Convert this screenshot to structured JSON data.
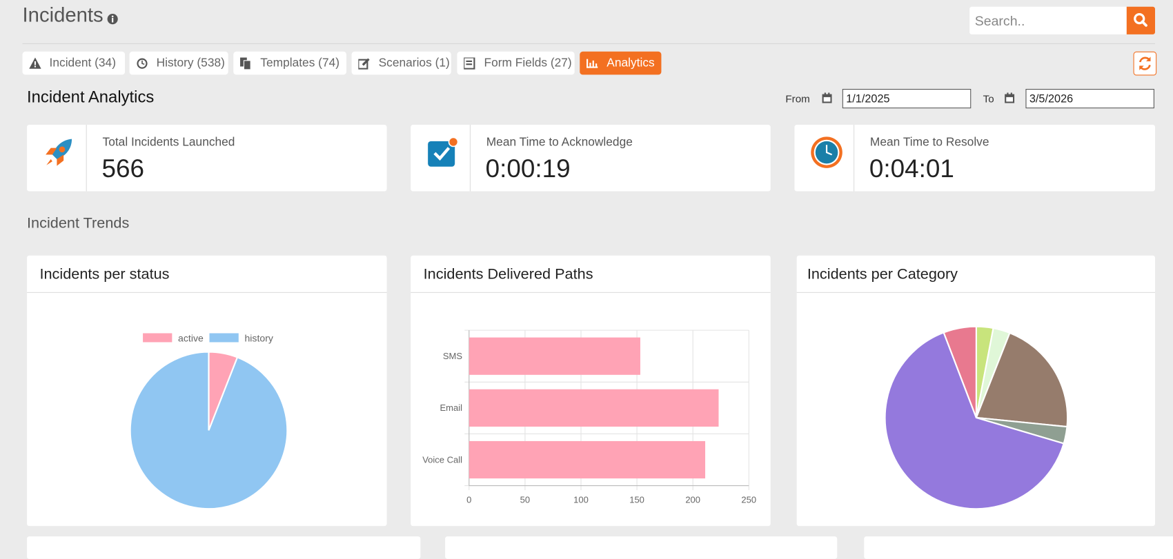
{
  "header": {
    "title": "Incidents",
    "search_placeholder": "Search.."
  },
  "tabs": [
    "Incident (34)",
    "History (538)",
    "Templates (74)",
    "Scenarios (1)",
    "Form Fields (27)",
    "Analytics"
  ],
  "analytics": {
    "title": "Incident Analytics",
    "from_label": "From",
    "from_date": "1/1/2025",
    "to_label": "To",
    "to_date": "3/5/2026"
  },
  "stats": [
    {
      "label": "Total Incidents Launched",
      "value": 566
    },
    {
      "label": "Mean Time to Acknowledge",
      "value": "0:00:19"
    },
    {
      "label": "Mean Time to Resolve",
      "value": "0:04:01"
    }
  ],
  "trends_title": "Incident Trends",
  "chart_data": [
    {
      "type": "pie",
      "title": "Incidents per status",
      "categories": [
        "active",
        "history"
      ],
      "values": [
        34,
        538
      ],
      "colors": [
        "#ffa3b5",
        "#90c6f2"
      ],
      "legend": "top"
    },
    {
      "type": "bar",
      "orientation": "horizontal",
      "title": "Incidents Delivered Paths",
      "categories": [
        "SMS",
        "Email",
        "Voice Call"
      ],
      "values": [
        153,
        223,
        211
      ],
      "color": "#ffa3b5",
      "xlim": [
        0,
        250
      ],
      "xticks": [
        0,
        50,
        100,
        150,
        200,
        250
      ],
      "grid": true
    },
    {
      "type": "pie",
      "title": "Incidents per Category",
      "categories": [
        null,
        null,
        null,
        null,
        null,
        null
      ],
      "values": [
        17,
        17,
        117,
        17,
        367,
        33
      ],
      "colors": [
        "#c8e47c",
        "#e0f7d8",
        "#967c6c",
        "#8f9f92",
        "#9479dd",
        "#e8798f"
      ]
    }
  ]
}
